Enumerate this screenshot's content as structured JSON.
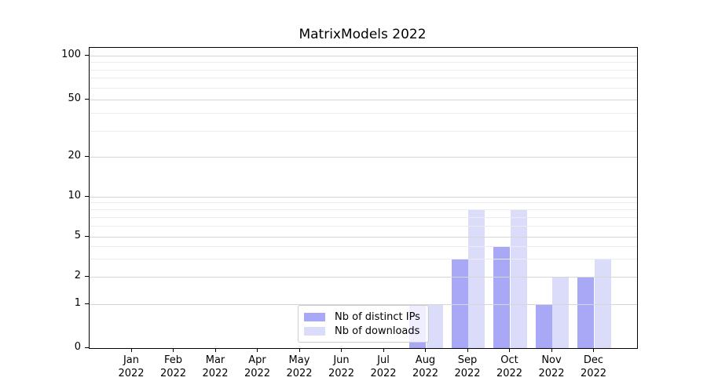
{
  "chart_data": {
    "type": "bar",
    "title": "MatrixModels 2022",
    "categories": [
      "Jan",
      "Feb",
      "Mar",
      "Apr",
      "May",
      "Jun",
      "Jul",
      "Aug",
      "Sep",
      "Oct",
      "Nov",
      "Dec"
    ],
    "year_label": "2022",
    "series": [
      {
        "name": "Nb of distinct IPs",
        "color": "#a8a8f7",
        "values": [
          0,
          0,
          0,
          0,
          0,
          0,
          0,
          1,
          3,
          4,
          1,
          2
        ]
      },
      {
        "name": "Nb of downloads",
        "color": "#dbdbfa",
        "values": [
          0,
          0,
          0,
          0,
          0,
          0,
          0,
          1,
          8,
          8,
          2,
          3
        ]
      }
    ],
    "xlabel": "",
    "ylabel": "",
    "y_axis": {
      "major_ticks": [
        0,
        1,
        2,
        5,
        10,
        20,
        50,
        100
      ],
      "minor_ticks": [
        3,
        4,
        6,
        7,
        8,
        9,
        30,
        40,
        60,
        70,
        80,
        90
      ],
      "ylim": [
        0,
        112
      ],
      "scale": "log-like (linear segment between 0 and 1)"
    },
    "grid": {
      "enabled": true,
      "major_color": "#d6d6d6",
      "minor_color": "#ececec"
    },
    "legend": {
      "position": "lower center",
      "frame_border_color": "#cccccc"
    },
    "colors": {
      "background": "#ffffff",
      "spine": "#000000",
      "text": "#000000"
    }
  }
}
